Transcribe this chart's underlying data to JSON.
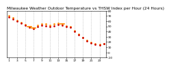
{
  "title": "Milwaukee Weather Outdoor Temperature vs THSW Index per Hour (24 Hours)",
  "bg_color": "#ffffff",
  "plot_bg": "#ffffff",
  "grid_color": "#999999",
  "hours": [
    1,
    2,
    3,
    4,
    5,
    6,
    7,
    8,
    9,
    10,
    11,
    12,
    13,
    14,
    15,
    16,
    17,
    18,
    19,
    20,
    21,
    22,
    23,
    24
  ],
  "temp_vals": [
    68,
    64,
    60,
    56,
    52,
    48,
    46,
    50,
    52,
    51,
    50,
    51,
    53,
    52,
    50,
    48,
    40,
    34,
    28,
    22,
    18,
    15,
    14,
    16
  ],
  "thsw_vals": [
    70,
    66,
    61,
    57,
    53,
    50,
    47,
    52,
    55,
    54,
    52,
    54,
    56,
    54,
    51,
    50,
    42,
    35,
    29,
    23,
    19,
    16,
    15,
    17
  ],
  "thsw_bar_indices": [
    5,
    6,
    13
  ],
  "temp_color": "#cc0000",
  "thsw_color": "#ff8800",
  "thsw_bar_color": "#ff8800",
  "ylim_min": -10,
  "ylim_max": 80,
  "yticks": [
    -10,
    0,
    10,
    20,
    30,
    40,
    50,
    60,
    70,
    80
  ],
  "ytick_labels": [
    "-10",
    "0",
    "10",
    "20",
    "30",
    "40",
    "50",
    "60",
    "70",
    "80"
  ],
  "vline_positions": [
    3,
    5,
    7,
    9,
    11,
    13,
    15,
    17,
    19,
    21,
    23
  ],
  "vline_color": "#aaaaaa",
  "marker_size": 2.0,
  "title_fontsize": 4.2,
  "tick_fontsize": 3.2,
  "xticks": [
    1,
    3,
    5,
    7,
    9,
    11,
    13,
    15,
    17,
    19,
    21,
    23
  ],
  "xtick_labels": [
    "1",
    "3",
    "5",
    "7",
    "9",
    "11",
    "13",
    "15",
    "17",
    "19",
    "21",
    "23"
  ]
}
